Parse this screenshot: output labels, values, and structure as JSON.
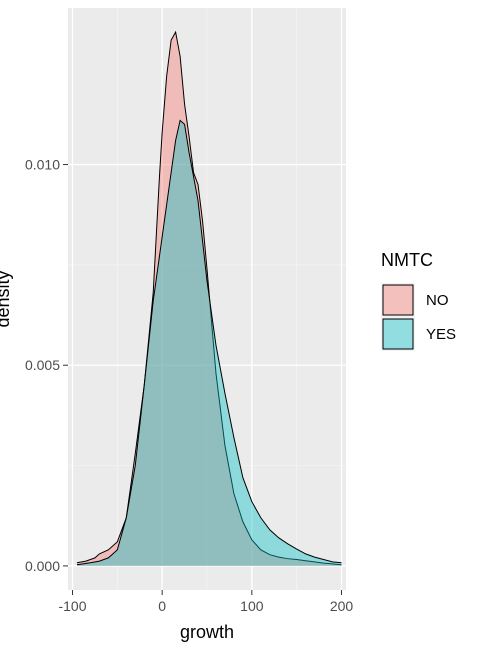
{
  "chart_data": {
    "type": "area",
    "subtype": "density",
    "xlabel": "growth",
    "ylabel": "density",
    "xlim": [
      -105,
      205
    ],
    "ylim": [
      -0.0006,
      0.0139
    ],
    "x_ticks": [
      -100,
      0,
      100,
      200
    ],
    "x_tick_labels": [
      "-100",
      "0",
      "100",
      "200"
    ],
    "y_ticks": [
      0.0,
      0.005,
      0.01
    ],
    "y_tick_labels": [
      "0.000",
      "0.005",
      "0.010"
    ],
    "grid": true,
    "legend": {
      "title": "NMTC",
      "placement": "right",
      "entries": [
        "NO",
        "YES"
      ]
    },
    "series": [
      {
        "name": "NO",
        "color": "#F8766D",
        "points": [
          [
            -95,
            8e-05
          ],
          [
            -85,
            0.00012
          ],
          [
            -75,
            0.0002
          ],
          [
            -70,
            0.0003
          ],
          [
            -60,
            0.0004
          ],
          [
            -50,
            0.0006
          ],
          [
            -40,
            0.0012
          ],
          [
            -30,
            0.0028
          ],
          [
            -20,
            0.0045
          ],
          [
            -10,
            0.0068
          ],
          [
            -3,
            0.0097
          ],
          [
            0,
            0.0108
          ],
          [
            5,
            0.0122
          ],
          [
            10,
            0.0131
          ],
          [
            15,
            0.0133
          ],
          [
            20,
            0.0127
          ],
          [
            25,
            0.0115
          ],
          [
            30,
            0.0107
          ],
          [
            35,
            0.0098
          ],
          [
            40,
            0.0095
          ],
          [
            45,
            0.0086
          ],
          [
            50,
            0.0074
          ],
          [
            60,
            0.0048
          ],
          [
            70,
            0.003
          ],
          [
            80,
            0.0018
          ],
          [
            90,
            0.0011
          ],
          [
            100,
            0.00065
          ],
          [
            110,
            0.0004
          ],
          [
            120,
            0.00028
          ],
          [
            130,
            0.00022
          ],
          [
            140,
            0.00018
          ],
          [
            150,
            0.00016
          ],
          [
            160,
            0.00013
          ],
          [
            170,
            0.0001
          ],
          [
            180,
            7e-05
          ],
          [
            190,
            5e-05
          ],
          [
            200,
            3e-05
          ]
        ]
      },
      {
        "name": "YES",
        "color": "#00BFC4",
        "points": [
          [
            -95,
            3e-05
          ],
          [
            -80,
            8e-05
          ],
          [
            -70,
            0.00012
          ],
          [
            -60,
            0.0002
          ],
          [
            -50,
            0.0004
          ],
          [
            -45,
            0.0008
          ],
          [
            -40,
            0.0012
          ],
          [
            -30,
            0.0025
          ],
          [
            -20,
            0.0045
          ],
          [
            -10,
            0.0066
          ],
          [
            0,
            0.0082
          ],
          [
            10,
            0.0098
          ],
          [
            15,
            0.0106
          ],
          [
            20,
            0.0111
          ],
          [
            25,
            0.011
          ],
          [
            30,
            0.0103
          ],
          [
            40,
            0.0091
          ],
          [
            50,
            0.0071
          ],
          [
            60,
            0.0055
          ],
          [
            70,
            0.0043
          ],
          [
            80,
            0.0032
          ],
          [
            90,
            0.0022
          ],
          [
            100,
            0.0016
          ],
          [
            110,
            0.0012
          ],
          [
            120,
            0.0009
          ],
          [
            130,
            0.0007
          ],
          [
            140,
            0.00055
          ],
          [
            150,
            0.00042
          ],
          [
            160,
            0.0003
          ],
          [
            170,
            0.00022
          ],
          [
            180,
            0.00016
          ],
          [
            190,
            0.0001
          ],
          [
            200,
            8e-05
          ]
        ]
      }
    ]
  }
}
